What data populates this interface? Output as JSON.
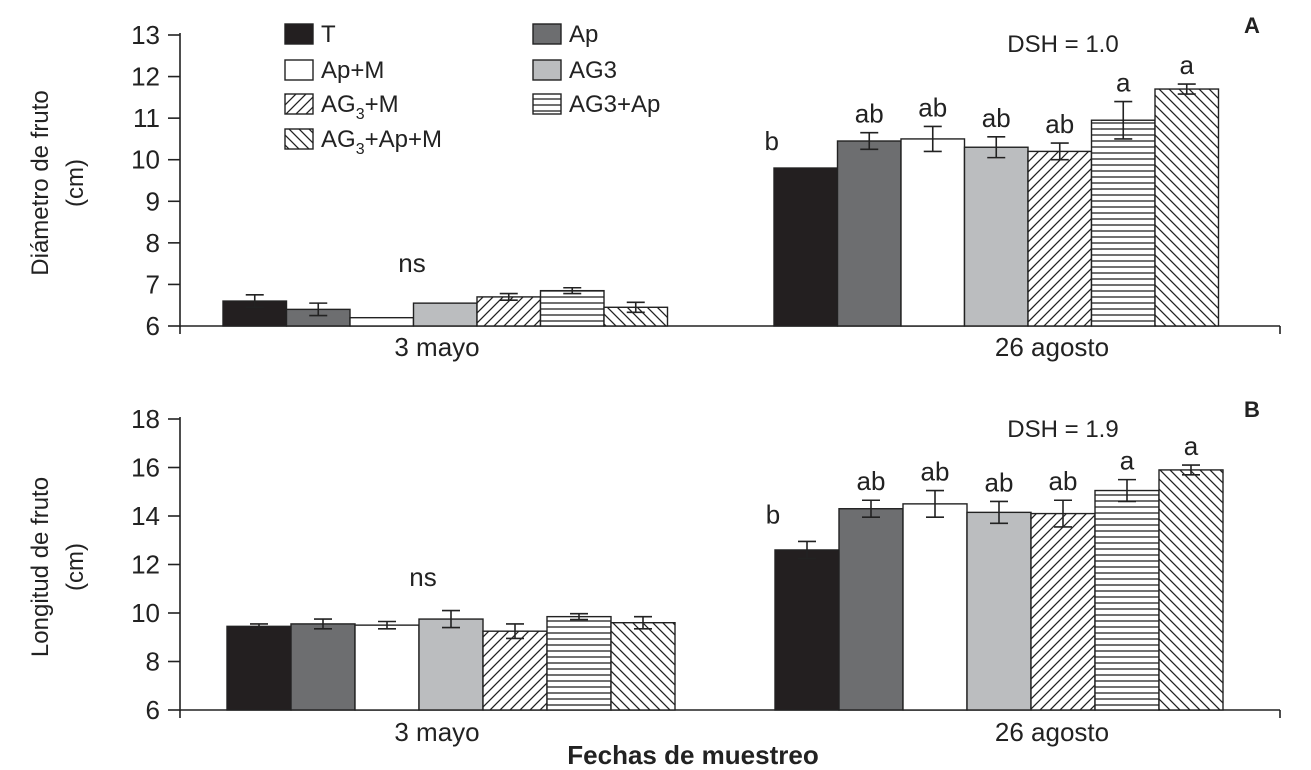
{
  "x_axis_label": "Fechas de muestreo",
  "legend": [
    {
      "key": "T",
      "label": "T",
      "fill": "black"
    },
    {
      "key": "Ap",
      "label": "Ap",
      "fill": "darkgray"
    },
    {
      "key": "ApM",
      "label": "Ap+M",
      "fill": "white"
    },
    {
      "key": "AG3",
      "label": "AG3",
      "fill": "lightgray"
    },
    {
      "key": "AG3M",
      "label": "AG",
      "label_sub": "3",
      "label_rest": "+M",
      "fill": "diag-up"
    },
    {
      "key": "AG3Ap",
      "label": "AG3+Ap",
      "fill": "horizontal"
    },
    {
      "key": "AG3ApM",
      "label": "AG",
      "label_sub": "3",
      "label_rest": "+Ap+M",
      "fill": "diag-down"
    }
  ],
  "colors": {
    "black": "#231f20",
    "darkgray": "#6d6e70",
    "lightgray": "#bbbdbf",
    "white": "#ffffff",
    "stroke": "#222222"
  },
  "chart_data": [
    {
      "type": "bar",
      "panel_label": "A",
      "dsh_text": "DSH = 1.0",
      "ylabel": "Diámetro de fruto",
      "ylabel_unit": "(cm)",
      "ylim": [
        6,
        13
      ],
      "yticks": [
        6,
        7,
        8,
        9,
        10,
        11,
        12,
        13
      ],
      "categories": [
        "3 mayo",
        "26 agosto"
      ],
      "group_annotations": [
        "ns",
        ""
      ],
      "series": [
        {
          "name": "T",
          "values": [
            6.6,
            9.8
          ],
          "errors": [
            0.15,
            0
          ],
          "letters": [
            "",
            "b"
          ]
        },
        {
          "name": "Ap",
          "values": [
            6.4,
            10.45
          ],
          "errors": [
            0.15,
            0.2
          ],
          "letters": [
            "",
            "ab"
          ]
        },
        {
          "name": "Ap+M",
          "values": [
            6.2,
            10.5
          ],
          "errors": [
            0,
            0.3
          ],
          "letters": [
            "",
            "ab"
          ]
        },
        {
          "name": "AG3",
          "values": [
            6.55,
            10.3
          ],
          "errors": [
            0,
            0.25
          ],
          "letters": [
            "",
            "ab"
          ]
        },
        {
          "name": "AG3+M",
          "values": [
            6.7,
            10.2
          ],
          "errors": [
            0.08,
            0.2
          ],
          "letters": [
            "",
            "ab"
          ]
        },
        {
          "name": "AG3+Ap",
          "values": [
            6.85,
            10.95
          ],
          "errors": [
            0.07,
            0.45
          ],
          "letters": [
            "",
            "a"
          ]
        },
        {
          "name": "AG3+Ap+M",
          "values": [
            6.45,
            11.7
          ],
          "errors": [
            0.12,
            0.12
          ],
          "letters": [
            "",
            "a"
          ]
        }
      ]
    },
    {
      "type": "bar",
      "panel_label": "B",
      "dsh_text": "DSH = 1.9",
      "ylabel": "Longitud de fruto",
      "ylabel_unit": "(cm)",
      "ylim": [
        6,
        18
      ],
      "yticks": [
        6,
        8,
        10,
        12,
        14,
        16,
        18
      ],
      "categories": [
        "3 mayo",
        "26 agosto"
      ],
      "group_annotations": [
        "ns",
        ""
      ],
      "series": [
        {
          "name": "T",
          "values": [
            9.45,
            12.6
          ],
          "errors": [
            0.1,
            0.35
          ],
          "letters": [
            "",
            "b"
          ]
        },
        {
          "name": "Ap",
          "values": [
            9.55,
            14.3
          ],
          "errors": [
            0.2,
            0.35
          ],
          "letters": [
            "",
            "ab"
          ]
        },
        {
          "name": "Ap+M",
          "values": [
            9.5,
            14.5
          ],
          "errors": [
            0.15,
            0.55
          ],
          "letters": [
            "",
            "ab"
          ]
        },
        {
          "name": "AG3",
          "values": [
            9.75,
            14.15
          ],
          "errors": [
            0.35,
            0.45
          ],
          "letters": [
            "",
            "ab"
          ]
        },
        {
          "name": "AG3+M",
          "values": [
            9.25,
            14.1
          ],
          "errors": [
            0.3,
            0.55
          ],
          "letters": [
            "",
            "ab"
          ]
        },
        {
          "name": "AG3+Ap",
          "values": [
            9.85,
            15.05
          ],
          "errors": [
            0.12,
            0.45
          ],
          "letters": [
            "",
            "a"
          ]
        },
        {
          "name": "AG3+Ap+M",
          "values": [
            9.6,
            15.9
          ],
          "errors": [
            0.25,
            0.2
          ],
          "letters": [
            "",
            "a"
          ]
        }
      ]
    }
  ]
}
